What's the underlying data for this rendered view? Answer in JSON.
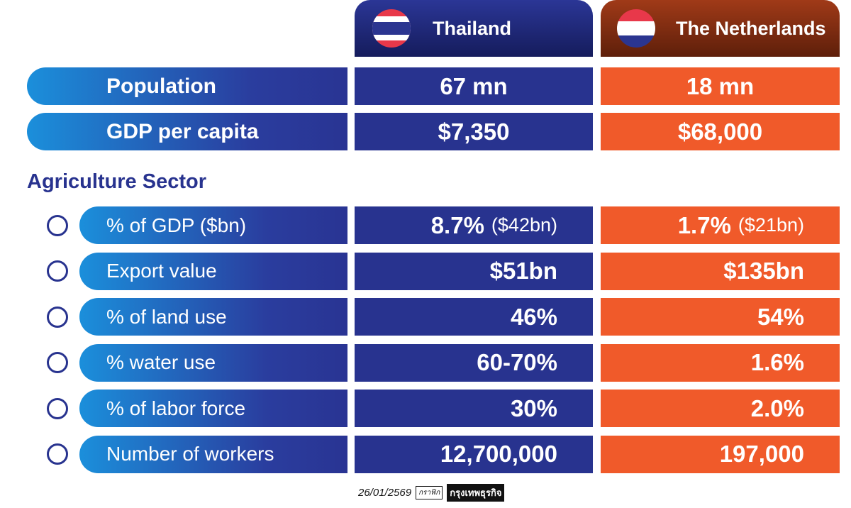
{
  "header": {
    "columns": [
      "Thailand",
      "The Netherlands"
    ]
  },
  "summary_rows": [
    {
      "label": "Population",
      "values": [
        "67 mn",
        "18 mn"
      ]
    },
    {
      "label": "GDP per capita",
      "values": [
        "$7,350",
        "$68,000"
      ]
    }
  ],
  "section": {
    "title": "Agriculture Sector",
    "rows": [
      {
        "label": "% of GDP ($bn)",
        "values": [
          "8.7%",
          "1.7%"
        ],
        "notes": [
          "($42bn)",
          "($21bn)"
        ]
      },
      {
        "label": "Export value",
        "values": [
          "$51bn",
          "$135bn"
        ]
      },
      {
        "label": "% of land use",
        "values": [
          "46%",
          "54%"
        ]
      },
      {
        "label": "% water use",
        "values": [
          "60-70%",
          "1.6%"
        ]
      },
      {
        "label": "% of labor force",
        "values": [
          "30%",
          "2.0%"
        ]
      },
      {
        "label": "Number of workers",
        "values": [
          "12,700,000",
          "197,000"
        ]
      }
    ]
  },
  "footer": {
    "date": "26/01/2569",
    "tag": "กราฟิก",
    "brand": "กรุงเทพธุรกิจ"
  }
}
